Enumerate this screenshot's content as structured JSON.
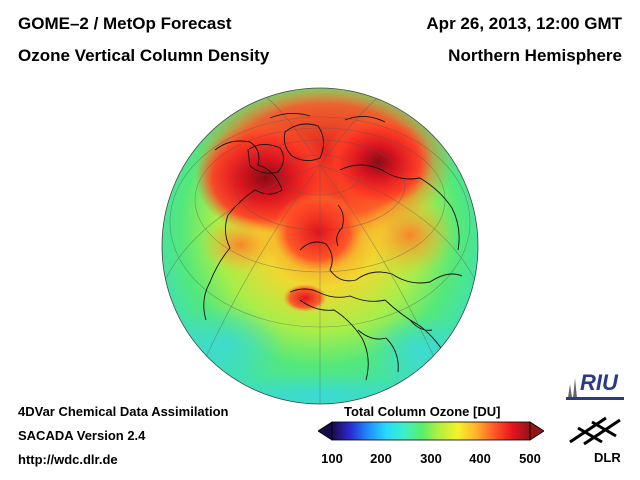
{
  "header": {
    "title_left_1": "GOME–2 / MetOp Forecast",
    "title_left_2": "Ozone Vertical Column Density",
    "title_right_1": "Apr 26, 2013, 12:00 GMT",
    "title_right_2": "Northern Hemisphere"
  },
  "footer": {
    "line1": "4DVar Chemical Data Assimilation",
    "line2": "SACADA Version 2.4",
    "line3": "http://wdc.dlr.de"
  },
  "colorbar": {
    "title": "Total Column Ozone [DU]",
    "ticks": [
      "100",
      "200",
      "300",
      "400",
      "500"
    ],
    "min": 100,
    "max": 500,
    "stops": [
      "#1a0a4a",
      "#2a2ad0",
      "#1e8cff",
      "#29d8ff",
      "#3cf0c8",
      "#5aee6a",
      "#b6f03c",
      "#f4f22a",
      "#ffb22a",
      "#ff5a28",
      "#e8141e",
      "#901418"
    ]
  },
  "logos": {
    "riu": "RIU",
    "dlr": "DLR"
  },
  "map": {
    "projection": "orthographic",
    "hemisphere": "Northern Hemisphere",
    "background_color": "#56e6a0"
  }
}
